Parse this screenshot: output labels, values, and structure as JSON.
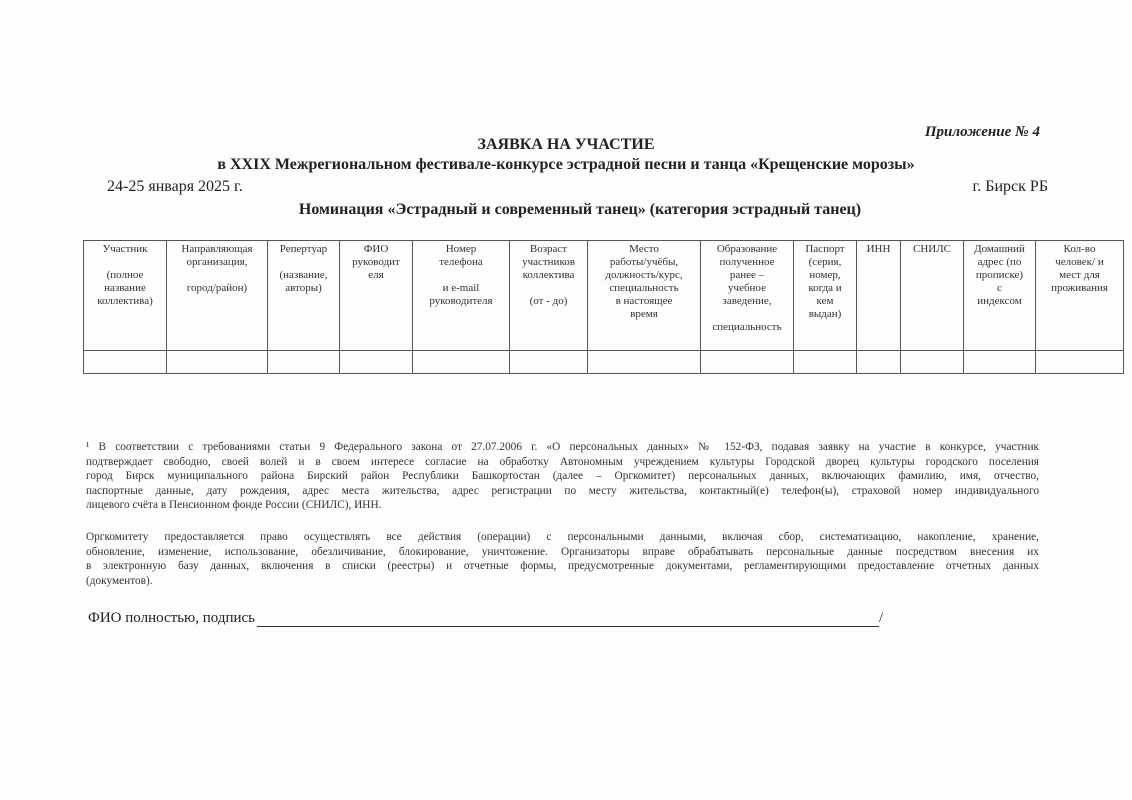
{
  "appendix": "Приложение № 4",
  "title": "ЗАЯВКА НА УЧАСТИЕ",
  "subtitle": "в XXIX Межрегиональном фестивале-конкурсе эстрадной песни и танца «Крещенские морозы»",
  "date": "24-25 января 2025 г.",
  "city": "г. Бирск РБ",
  "nomination": "Номинация «Эстрадный и современный танец» (категория эстрадный танец)",
  "table": {
    "columns": [
      "Участник\n\n(полное\nназвание\nколлектива)",
      "Направляющая\nорганизация,\n\nгород/район)",
      "Репертуар\n\n(название,\nавторы)",
      "ФИО\nруководит\nеля",
      "Номер\nтелефона\n\nи   e-mail\nруководителя",
      "Возраст\nучастников\nколлектива\n\n(от - до)",
      "Место\nработы/учёбы,\nдолжность/курс,\nспециальность\nв настоящее\nвремя",
      "Образование\nполученное\nранее –\nучебное\nзаведение,\n\nспециальность",
      "Паспорт\n(серия,\nномер,\nкогда и\nкем\nвыдан)",
      "ИНН",
      "СНИЛС",
      "Домашний\nадрес (по\nпрописке)\nс\nиндексом",
      "Кол-во\nчеловек/ и\nмест для\nпроживания"
    ]
  },
  "footnote_lines": [
    "¹ В соответствии с требованиями статьи 9 Федерального закона от 27.07.2006 г.  «О персональных данных» № 152-ФЗ, подавая заявку на участие в конкурсе,  участник",
    "подтверждает свободно, своей волей и в своем интересе согласие на обработку Автономным учреждением культуры Городской дворец культуры городского поселения",
    "город Бирск муниципального района Бирский район Республики Башкортостан  (далее – Оргкомитет) персональных данных, включающих фамилию, имя, отчество,",
    "паспортные данные, дату рождения, адрес места жительства, адрес регистрации по месту жительства, контактный(е) телефон(ы), страховой номер индивидуального",
    "лицевого счёта в Пенсионном фонде России (СНИЛС), ИНН."
  ],
  "consent_lines": [
    "Оргкомитету предоставляется право осуществлять все действия (операции) с персональными данными, включая сбор, систематизацию, накопление, хранение,",
    "обновление, изменение, использование, обезличивание, блокирование, уничтожение. Организаторы вправе обрабатывать персональные данные посредством внесения их",
    "в электронную базу данных, включения в списки (реестры) и отчетные формы, предусмотренные документами, регламентирующими предоставление отчетных данных",
    "(документов)."
  ],
  "signature_label": "ФИО полностью, подпись",
  "signature_end": "/"
}
